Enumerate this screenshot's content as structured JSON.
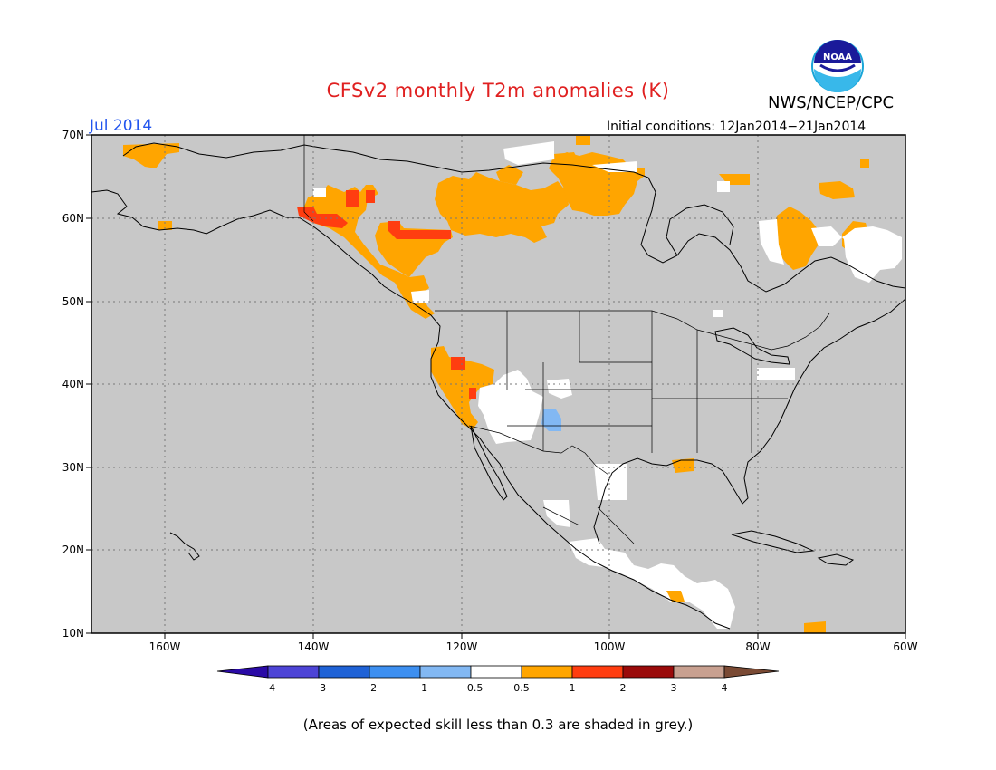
{
  "title": "CFSv2 monthly T2m anomalies (K)",
  "agency": "NWS/NCEP/CPC",
  "logo_text": "NOAA",
  "period": "Jul 2014",
  "initial_conditions": "Initial conditions: 12Jan2014−21Jan2014",
  "note": "(Areas of expected skill less than 0.3 are shaded in grey.)",
  "map": {
    "lon_range": [
      -170,
      -60
    ],
    "lat_range": [
      10,
      70
    ],
    "lat_labels": [
      "70N",
      "60N",
      "50N",
      "40N",
      "30N",
      "20N",
      "10N"
    ],
    "lon_labels": [
      "160W",
      "140W",
      "120W",
      "100W",
      "80W",
      "60W"
    ],
    "background": "#c8c8c8",
    "gridlines": "dotted"
  },
  "colorbar": {
    "tick_labels": [
      "−4",
      "−3",
      "−2",
      "−1",
      "−0.5",
      "0.5",
      "1",
      "2",
      "3",
      "4"
    ],
    "colors": [
      "#2a0aa6",
      "#4d44d6",
      "#1f62d6",
      "#3d8ff0",
      "#82b8f3",
      "#ffffff",
      "#ffa500",
      "#ff3d10",
      "#9a0a0a",
      "#c8a090",
      "#7a4a34"
    ]
  },
  "anomaly_regions": [
    {
      "name": "alaska-north-slope",
      "category": "0.5-1",
      "color": "#ffa500"
    },
    {
      "name": "alaska-west-coast",
      "category": "0.5-1",
      "color": "#ffa500"
    },
    {
      "name": "yukon-alaska-panhandle",
      "category": "0.5-1",
      "color": "#ffa500"
    },
    {
      "name": "yukon-hotspot",
      "category": "1-2",
      "color": "#ff3d10"
    },
    {
      "name": "northern-bc",
      "category": "0.5-1",
      "color": "#ffa500"
    },
    {
      "name": "northern-bc-hotspot",
      "category": "1-2",
      "color": "#ff3d10"
    },
    {
      "name": "northwest-territories",
      "category": "0.5-1",
      "color": "#ffa500"
    },
    {
      "name": "nunavut-north",
      "category": "0.5-1",
      "color": "#ffa500"
    },
    {
      "name": "hudson-bay-east",
      "category": "0.5-1",
      "color": "#ffa500"
    },
    {
      "name": "quebec",
      "category": "0.5-1",
      "color": "#ffa500"
    },
    {
      "name": "baffin",
      "category": "0.5-1",
      "color": "#ffa500"
    },
    {
      "name": "great-basin",
      "category": "0.5-1",
      "color": "#ffa500"
    },
    {
      "name": "california-hotspot",
      "category": "1-2",
      "color": "#ff3d10"
    },
    {
      "name": "southwest-neutral",
      "category": "-0.5-0.5",
      "color": "#ffffff"
    },
    {
      "name": "new-mexico-cool",
      "category": "-1--0.5",
      "color": "#82b8f3"
    },
    {
      "name": "louisiana",
      "category": "0.5-1",
      "color": "#ffa500"
    },
    {
      "name": "central-america",
      "category": "0.5-1",
      "color": "#ffa500"
    },
    {
      "name": "venezuela",
      "category": "0.5-1",
      "color": "#ffa500"
    }
  ]
}
